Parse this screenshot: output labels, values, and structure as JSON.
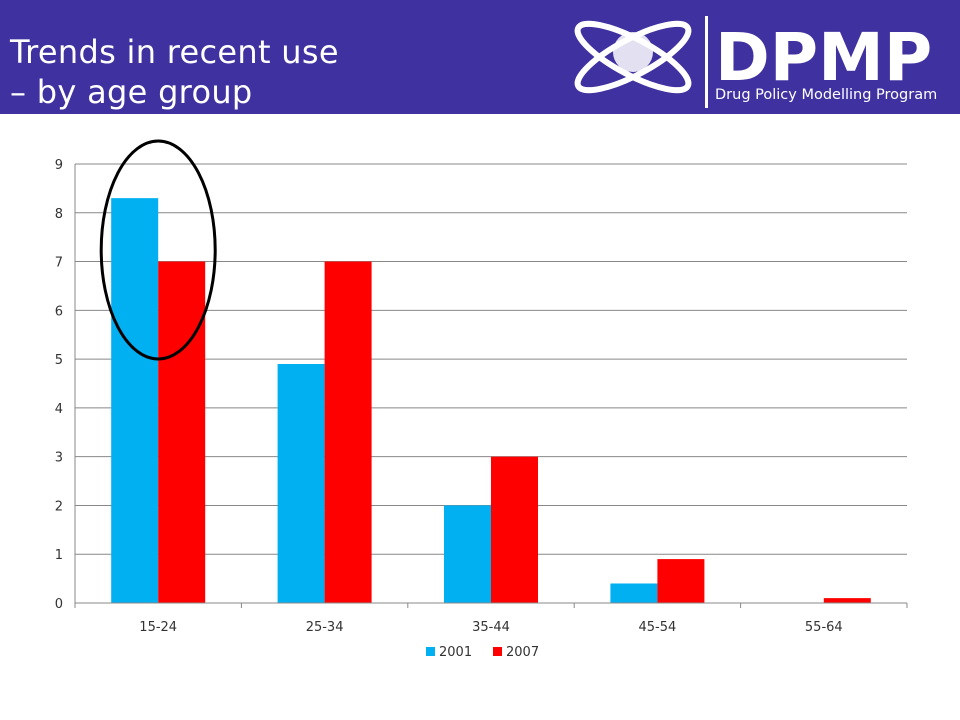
{
  "slide": {
    "title_line1": "Trends in recent use",
    "title_line2": "– by age group"
  },
  "logo": {
    "name": "DPMP",
    "subtitle": "Drug Policy Modelling Program"
  },
  "colors": {
    "header": "#3f31a0",
    "series_2001": "#00b0f0",
    "series_2007": "#ff0000",
    "highlight_ellipse": "#000000"
  },
  "chart_data": {
    "type": "bar",
    "categories": [
      "15-24",
      "25-34",
      "35-44",
      "45-54",
      "55-64"
    ],
    "series": [
      {
        "name": "2001",
        "values": [
          8.3,
          4.9,
          2.0,
          0.4,
          0.0
        ],
        "color": "#00b0f0"
      },
      {
        "name": "2007",
        "values": [
          7.0,
          7.0,
          3.0,
          0.9,
          0.1
        ],
        "color": "#ff0000"
      }
    ],
    "ylim": [
      0,
      9
    ],
    "yticks": [
      0,
      1,
      2,
      3,
      4,
      5,
      6,
      7,
      8,
      9
    ],
    "grid": true,
    "legend": "bottom",
    "highlighted_category": "15-24"
  }
}
